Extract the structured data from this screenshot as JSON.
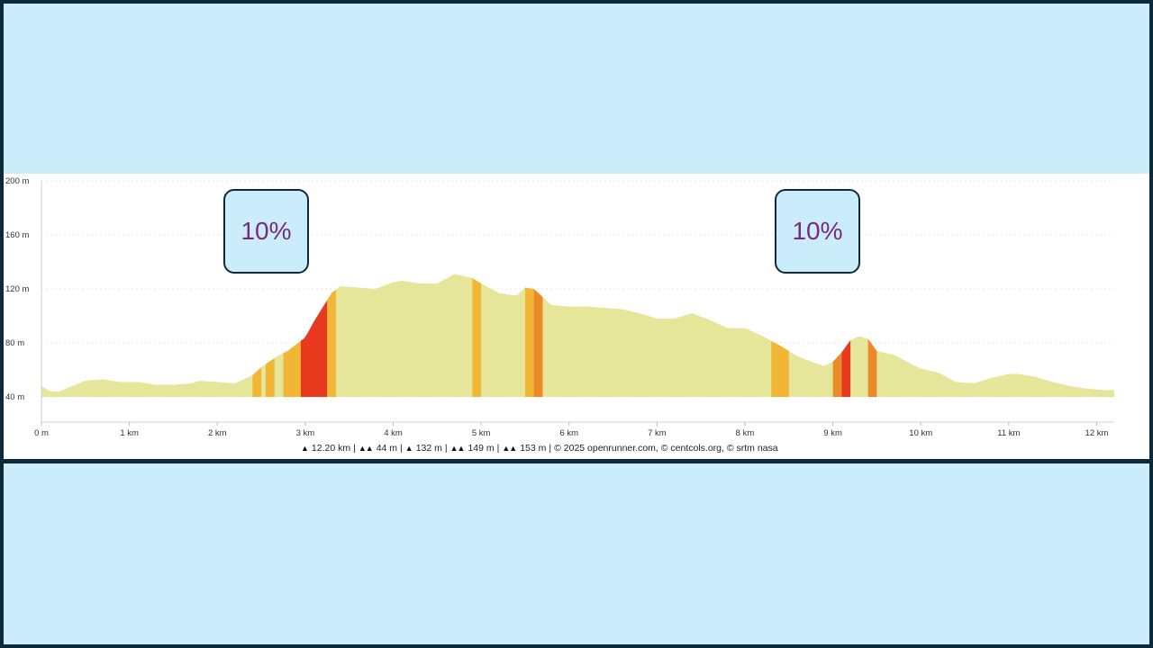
{
  "chart_data": {
    "type": "area",
    "title": "",
    "xlabel": "",
    "ylabel": "",
    "xlim": [
      0,
      12.2
    ],
    "ylim": [
      40,
      200
    ],
    "y_ticks": [
      "40 m",
      "80 m",
      "120 m",
      "160 m",
      "200 m"
    ],
    "x_ticks": [
      "0 m",
      "1 km",
      "2 km",
      "3 km",
      "4 km",
      "5 km",
      "6 km",
      "7 km",
      "8 km",
      "9 km",
      "10 km",
      "11 km",
      "12 km"
    ],
    "grid": true,
    "series": [
      {
        "x": [
          0,
          0.1,
          0.2,
          0.35,
          0.5,
          0.7,
          0.9,
          1.1,
          1.3,
          1.5,
          1.7,
          1.8,
          2.0,
          2.2,
          2.4,
          2.5,
          2.7,
          2.8,
          3.0,
          3.1,
          3.3,
          3.4,
          3.6,
          3.8,
          4.0,
          4.1,
          4.3,
          4.5,
          4.7,
          4.9,
          5.0,
          5.2,
          5.4,
          5.5,
          5.6,
          5.8,
          6.0,
          6.2,
          6.4,
          6.6,
          6.8,
          7.0,
          7.2,
          7.4,
          7.6,
          7.8,
          8.0,
          8.2,
          8.4,
          8.6,
          8.8,
          8.9,
          9.0,
          9.1,
          9.2,
          9.3,
          9.4,
          9.5,
          9.7,
          9.9,
          10.0,
          10.2,
          10.4,
          10.6,
          10.8,
          11.0,
          11.1,
          11.3,
          11.5,
          11.7,
          11.9,
          12.1,
          12.2
        ],
        "y": [
          48,
          44,
          44,
          48,
          52,
          53,
          51,
          51,
          49,
          49,
          50,
          52,
          51,
          50,
          56,
          62,
          71,
          74,
          84,
          96,
          117,
          122,
          121,
          120,
          125,
          126,
          124,
          124,
          131,
          128,
          124,
          117,
          115,
          121,
          120,
          108,
          107,
          107,
          106,
          105,
          102,
          98,
          98,
          102,
          97,
          91,
          91,
          85,
          78,
          70,
          65,
          63,
          66,
          73,
          82,
          85,
          83,
          74,
          71,
          64,
          61,
          58,
          51,
          50,
          54,
          57,
          57,
          55,
          51,
          48,
          46,
          45,
          45
        ]
      }
    ],
    "slope_segments": [
      {
        "from": 2.4,
        "to": 2.5,
        "color": "#f2b636"
      },
      {
        "from": 2.55,
        "to": 2.65,
        "color": "#f2b636"
      },
      {
        "from": 2.75,
        "to": 2.95,
        "color": "#f2b636"
      },
      {
        "from": 2.95,
        "to": 3.25,
        "color": "#e8391f"
      },
      {
        "from": 3.25,
        "to": 3.35,
        "color": "#f2b636"
      },
      {
        "from": 4.9,
        "to": 5.0,
        "color": "#f2b636"
      },
      {
        "from": 5.5,
        "to": 5.6,
        "color": "#f2b636"
      },
      {
        "from": 5.6,
        "to": 5.7,
        "color": "#ec8a2a"
      },
      {
        "from": 8.3,
        "to": 8.5,
        "color": "#f2b636"
      },
      {
        "from": 9.0,
        "to": 9.1,
        "color": "#ec8a2a"
      },
      {
        "from": 9.1,
        "to": 9.2,
        "color": "#e8391f"
      },
      {
        "from": 9.4,
        "to": 9.5,
        "color": "#ec8a2a"
      }
    ],
    "base_color": "#e5e69a"
  },
  "footer": {
    "distance": "12.20 km",
    "altitude_min": "44 m",
    "altitude_max": "132 m",
    "elevation_gain": "149 m",
    "elevation_loss": "153 m",
    "credits": "© 2025 openrunner.com, © centcols.org, © srtm nasa",
    "icons": [
      "distance-icon",
      "min-altitude-icon",
      "max-altitude-icon",
      "elevation-gain-icon",
      "elevation-loss-icon"
    ]
  },
  "callouts": [
    {
      "text": "10%"
    },
    {
      "text": "10%"
    }
  ]
}
